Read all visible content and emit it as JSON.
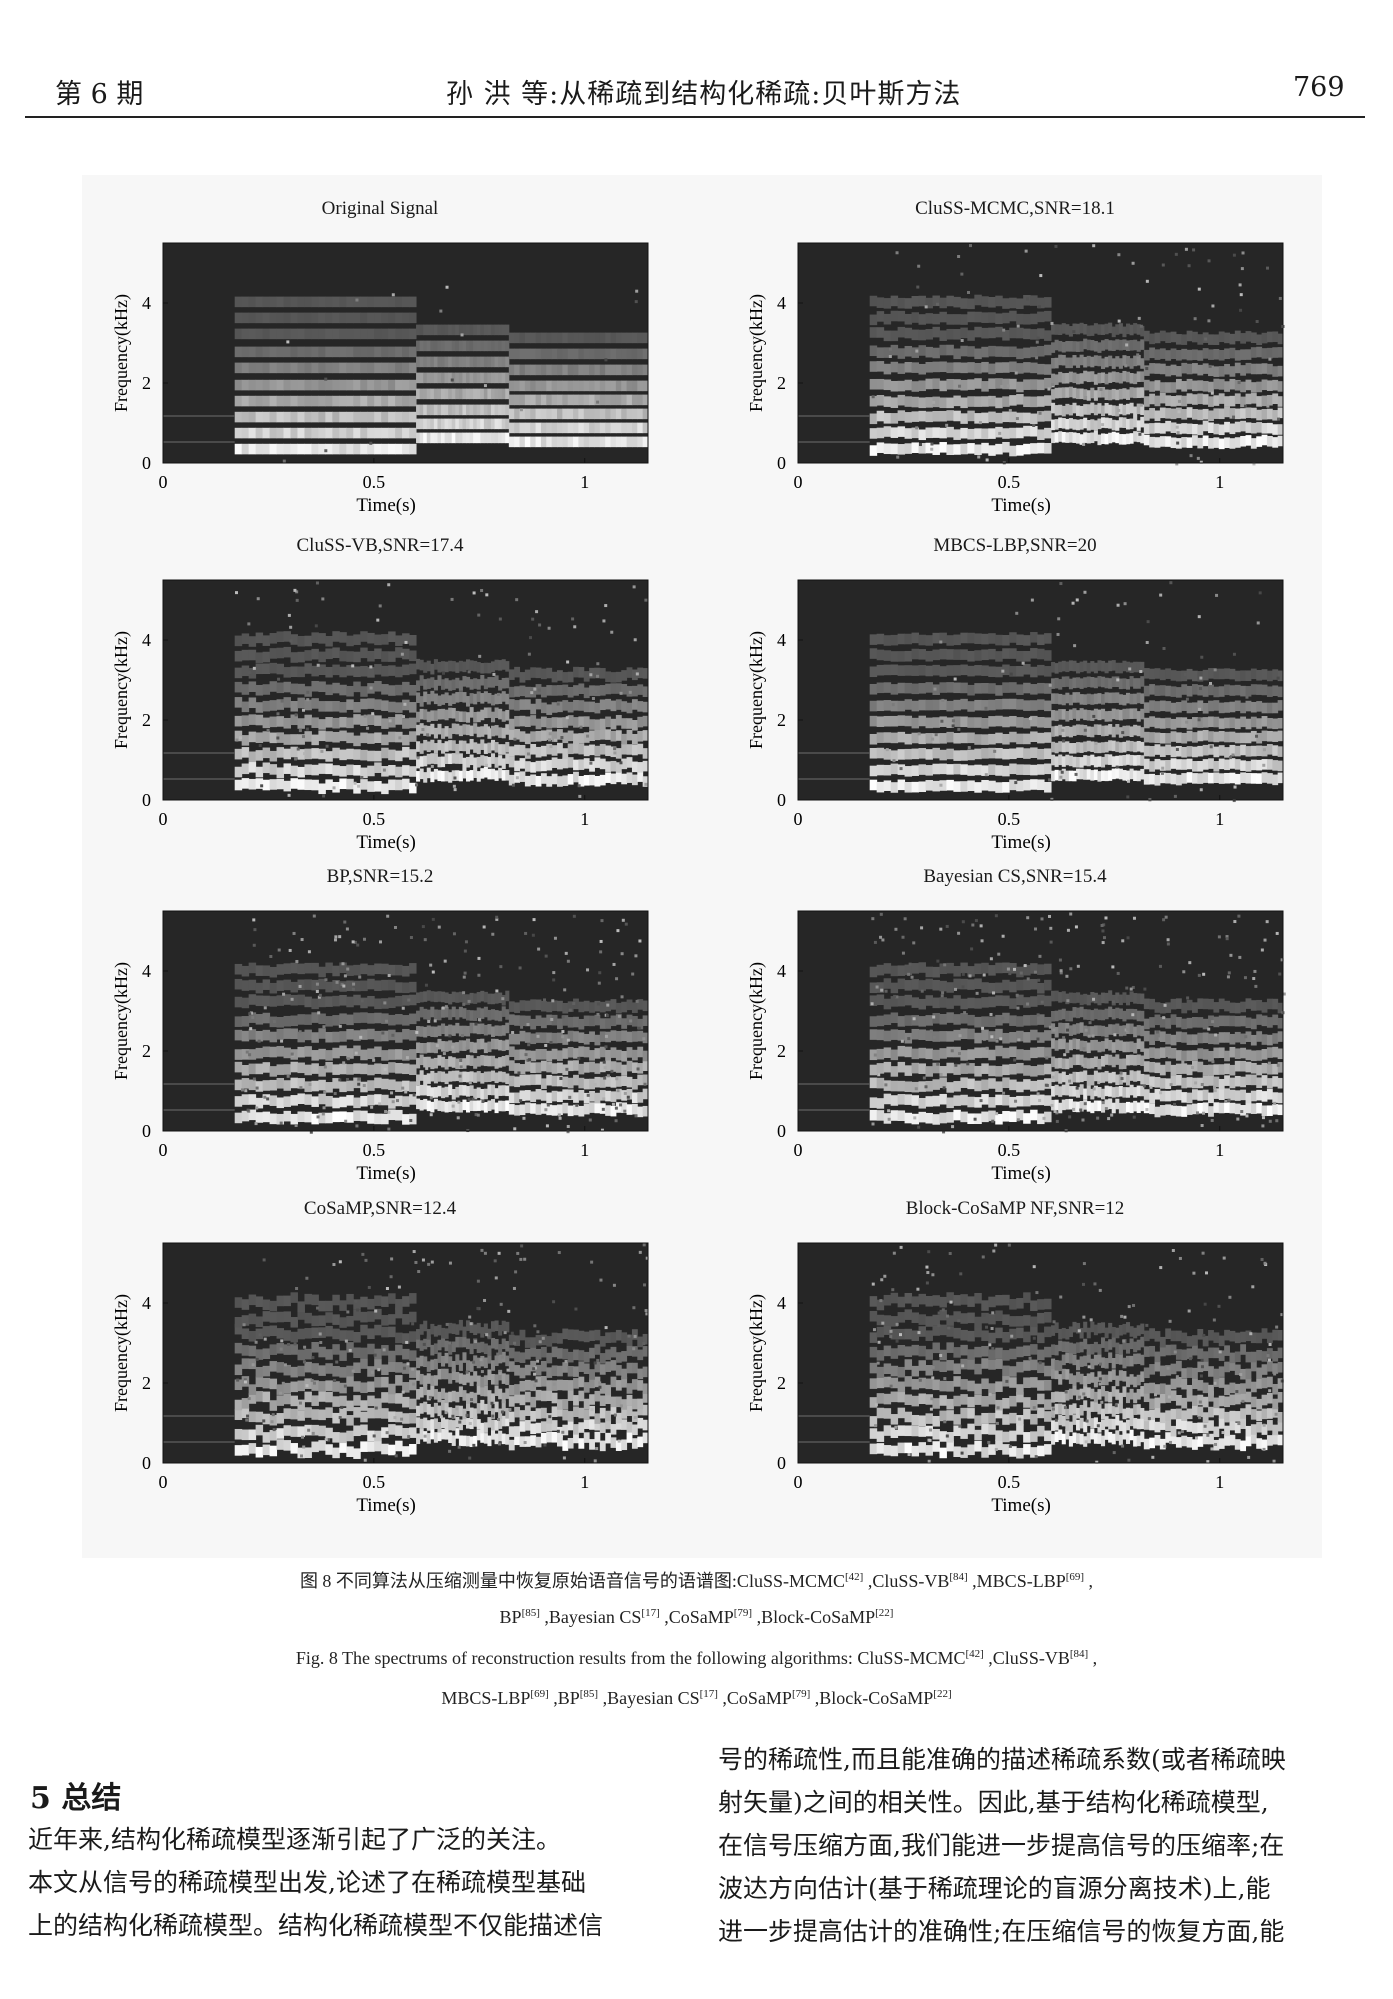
{
  "header": {
    "left": "第 6 期",
    "center": "孙  洪 等:从稀疏到结构化稀疏:贝叶斯方法",
    "page": "769"
  },
  "figure": {
    "panels": [
      {
        "title": "Original Signal",
        "xlabel": "Time(s)",
        "ylabel": "Frequency(kHz)",
        "noise": 0.02,
        "spread": 0.0,
        "seed": 11
      },
      {
        "title": "CluSS-MCMC,SNR=18.1",
        "xlabel": "Time(s)",
        "ylabel": "Frequency(kHz)",
        "noise": 0.12,
        "spread": 0.25,
        "seed": 23
      },
      {
        "title": "CluSS-VB,SNR=17.4",
        "xlabel": "Time(s)",
        "ylabel": "Frequency(kHz)",
        "noise": 0.14,
        "spread": 0.35,
        "seed": 37
      },
      {
        "title": "MBCS-LBP,SNR=20",
        "xlabel": "Time(s)",
        "ylabel": "Frequency(kHz)",
        "noise": 0.1,
        "spread": 0.2,
        "seed": 41
      },
      {
        "title": "BP,SNR=15.2",
        "xlabel": "Time(s)",
        "ylabel": "Frequency(kHz)",
        "noise": 0.3,
        "spread": 0.3,
        "seed": 53
      },
      {
        "title": "Bayesian CS,SNR=15.4",
        "xlabel": "Time(s)",
        "ylabel": "Frequency(kHz)",
        "noise": 0.28,
        "spread": 0.3,
        "seed": 67
      },
      {
        "title": "CoSaMP,SNR=12.4",
        "xlabel": "Time(s)",
        "ylabel": "Frequency(kHz)",
        "noise": 0.22,
        "spread": 0.6,
        "seed": 79
      },
      {
        "title": "Block-CoSaMP NF,SNR=12",
        "xlabel": "Time(s)",
        "ylabel": "Frequency(kHz)",
        "noise": 0.2,
        "spread": 0.55,
        "seed": 83
      }
    ],
    "xticks": [
      "0",
      "0.5",
      "1"
    ],
    "yticks": [
      "0",
      "2",
      "4"
    ]
  },
  "chart_data": {
    "type": "heatmap",
    "x_range": [
      0,
      1.15
    ],
    "y_range": [
      0,
      5.5
    ],
    "xticks": [
      0,
      0.5,
      1
    ],
    "yticks": [
      0,
      2,
      4
    ],
    "xlabel": "Time(s)",
    "ylabel": "Frequency(kHz)"
  },
  "caption": {
    "cn_line1": "图 8   不同算法从压缩测量中恢复原始语音信号的语谱图:CluSS-MCMC[42] ,CluSS-VB[84] ,MBCS-LBP[69] ,",
    "cn_line2": "BP[85] ,Bayesian CS[17] ,CoSaMP[79] ,Block-CoSaMP[22]",
    "en_line1": "Fig. 8   The spectrums of reconstruction results from the following algorithms: CluSS-MCMC[42] ,CluSS-VB[84] ,",
    "en_line2": "MBCS-LBP[69] ,BP[85] ,Bayesian CS[17] ,CoSaMP[79] ,Block-CoSaMP[22]"
  },
  "section": {
    "heading": "5   总结",
    "left_lines": [
      "    近年来,结构化稀疏模型逐渐引起了广泛的关注。",
      "本文从信号的稀疏模型出发,论述了在稀疏模型基础",
      "上的结构化稀疏模型。结构化稀疏模型不仅能描述信"
    ],
    "right_lines": [
      "号的稀疏性,而且能准确的描述稀疏系数(或者稀疏映",
      "射矢量)之间的相关性。因此,基于结构化稀疏模型,",
      "在信号压缩方面,我们能进一步提高信号的压缩率;在",
      "波达方向估计(基于稀疏理论的盲源分离技术)上,能",
      "进一步提高估计的准确性;在压缩信号的恢复方面,能"
    ]
  }
}
